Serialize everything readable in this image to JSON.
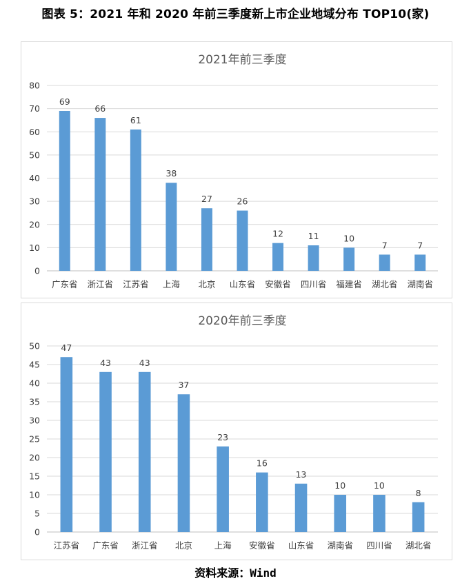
{
  "figure_title": "图表 5：2021 年和 2020 年前三季度新上市企业地域分布 TOP10(家)",
  "source": "资料来源：Wind",
  "colors": {
    "bar": "#5b9bd5",
    "grid": "#d9d9d9",
    "axis": "#bfbfbf",
    "text": "#404040",
    "title": "#595959"
  },
  "chart_data": [
    {
      "type": "bar",
      "title": "2021年前三季度",
      "categories": [
        "广东省",
        "浙江省",
        "江苏省",
        "上海",
        "北京",
        "山东省",
        "安徽省",
        "四川省",
        "福建省",
        "湖北省",
        "湖南省"
      ],
      "values": [
        69,
        66,
        61,
        38,
        27,
        26,
        12,
        11,
        10,
        7,
        7
      ],
      "ylim": [
        0,
        80
      ],
      "yticks": [
        0,
        10,
        20,
        30,
        40,
        50,
        60,
        70,
        80
      ],
      "grid": true,
      "xlabel": "",
      "ylabel": ""
    },
    {
      "type": "bar",
      "title": "2020年前三季度",
      "categories": [
        "江苏省",
        "广东省",
        "浙江省",
        "北京",
        "上海",
        "安徽省",
        "山东省",
        "湖南省",
        "四川省",
        "湖北省"
      ],
      "values": [
        47,
        43,
        43,
        37,
        23,
        16,
        13,
        10,
        10,
        8
      ],
      "ylim": [
        0,
        50
      ],
      "yticks": [
        0,
        5,
        10,
        15,
        20,
        25,
        30,
        35,
        40,
        45,
        50
      ],
      "grid": true,
      "xlabel": "",
      "ylabel": ""
    }
  ]
}
